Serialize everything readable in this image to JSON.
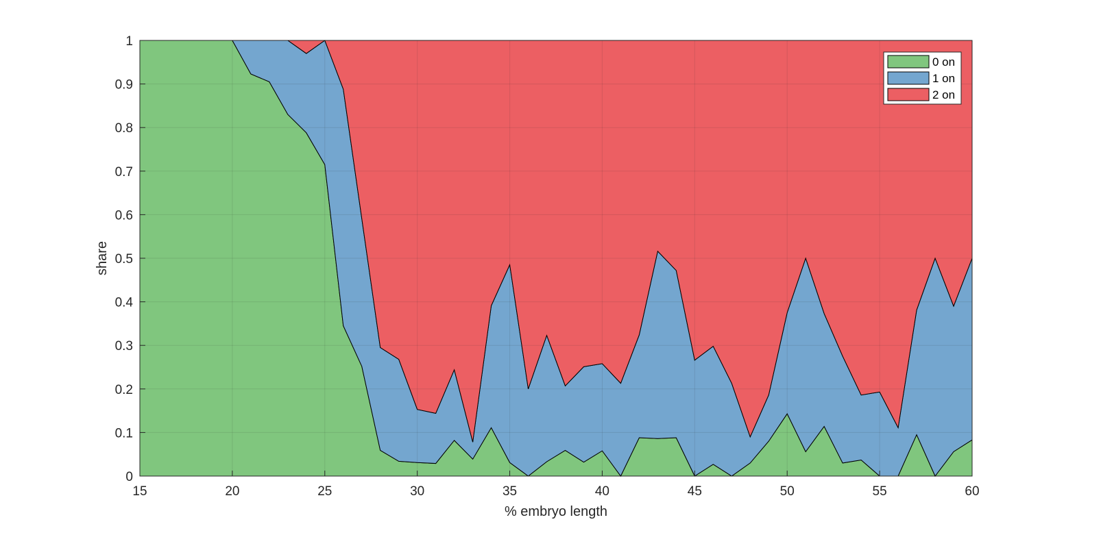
{
  "chart_data": {
    "type": "area",
    "stacked": true,
    "xlabel": "% embryo length",
    "ylabel": "share",
    "xlim": [
      15,
      60
    ],
    "ylim": [
      0,
      1
    ],
    "xticks": [
      15,
      20,
      25,
      30,
      35,
      40,
      45,
      50,
      55,
      60
    ],
    "yticks": [
      0,
      0.1,
      0.2,
      0.3,
      0.4,
      0.5,
      0.6,
      0.7,
      0.8,
      0.9,
      1
    ],
    "ytick_labels": [
      "0",
      "0.1",
      "0.2",
      "0.3",
      "0.4",
      "0.5",
      "0.6",
      "0.7",
      "0.8",
      "0.9",
      "1"
    ],
    "grid": true,
    "legend_position": "top-right",
    "x": [
      15,
      16,
      17,
      18,
      19,
      20,
      21,
      22,
      23,
      24,
      25,
      26,
      27,
      28,
      29,
      30,
      31,
      32,
      33,
      34,
      35,
      36,
      37,
      38,
      39,
      40,
      41,
      42,
      43,
      44,
      45,
      46,
      47,
      48,
      49,
      50,
      51,
      52,
      53,
      54,
      55,
      56,
      57,
      58,
      59,
      60
    ],
    "series": [
      {
        "name": "0 on",
        "color": "#80c67e",
        "values": [
          1,
          1,
          1,
          1,
          1,
          1,
          0.923,
          0.905,
          0.83,
          0.788,
          0.715,
          0.345,
          0.252,
          0.059,
          0.034,
          0.031,
          0.029,
          0.082,
          0.039,
          0.111,
          0.031,
          0,
          0.033,
          0.059,
          0.032,
          0.058,
          0,
          0.088,
          0.086,
          0.088,
          0,
          0.027,
          0,
          0.03,
          0.08,
          0.143,
          0.056,
          0.114,
          0.03,
          0.037,
          0,
          0,
          0.095,
          0,
          0.056,
          0.083
        ]
      },
      {
        "name": "1 on",
        "color": "#74a6cf",
        "values": [
          0,
          0,
          0,
          0,
          0,
          0,
          0.077,
          0.095,
          0.17,
          0.182,
          0.285,
          0.543,
          0.339,
          0.236,
          0.234,
          0.122,
          0.115,
          0.162,
          0.039,
          0.28,
          0.454,
          0.2,
          0.29,
          0.148,
          0.219,
          0.2,
          0.213,
          0.236,
          0.43,
          0.384,
          0.266,
          0.271,
          0.213,
          0.06,
          0.106,
          0.232,
          0.444,
          0.259,
          0.245,
          0.149,
          0.193,
          0.111,
          0.286,
          0.5,
          0.334,
          0.417
        ]
      },
      {
        "name": "2 on",
        "color": "#ec5f63",
        "values": [
          0,
          0,
          0,
          0,
          0,
          0,
          0,
          0,
          0,
          0.03,
          0,
          0.112,
          0.409,
          0.705,
          0.732,
          0.847,
          0.856,
          0.756,
          0.922,
          0.609,
          0.515,
          0.8,
          0.677,
          0.793,
          0.749,
          0.742,
          0.787,
          0.676,
          0.484,
          0.528,
          0.734,
          0.702,
          0.787,
          0.91,
          0.814,
          0.625,
          0.5,
          0.627,
          0.725,
          0.814,
          0.807,
          0.889,
          0.619,
          0.5,
          0.61,
          0.5
        ]
      }
    ]
  }
}
